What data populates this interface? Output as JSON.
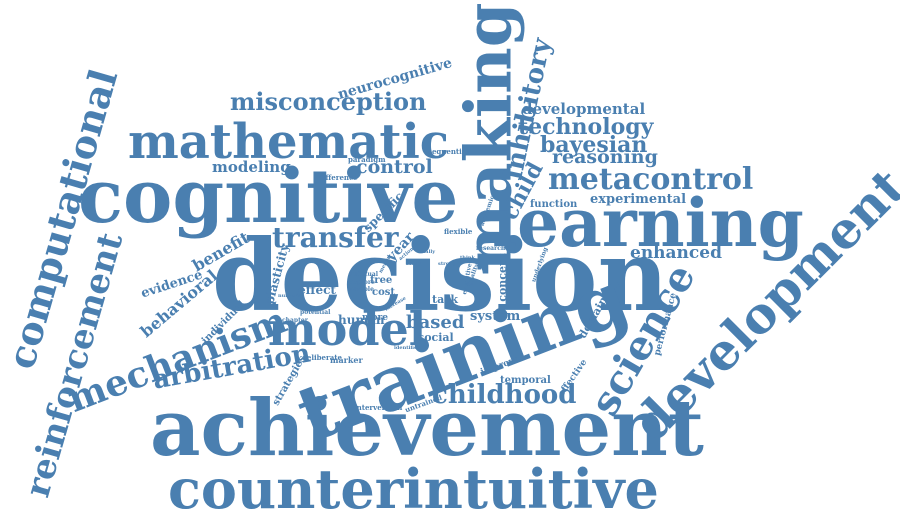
{
  "theme": {
    "word_color": "#4a7fb0",
    "background": "#ffffff"
  },
  "words": {
    "decision": "decision",
    "achievement": "achievement",
    "counterintuitive": "counterintuitive",
    "cognitive": "cognitive",
    "training": "training",
    "learning": "learning",
    "making": "making",
    "development": "development",
    "mathematic": "mathematic",
    "computational": "computational",
    "reinforcement": "reinforcement",
    "model": "model",
    "mechanism": "mechanism",
    "science": "science",
    "metacontrol": "metacontrol",
    "childhood": "childhood",
    "misconception": "misconception",
    "arbitration": "arbitration",
    "transfer": "transfer",
    "inhibitory": "inhibitory",
    "technology": "technology",
    "bayesian": "bayesian",
    "reasoning": "reasoning",
    "developmental": "developmental",
    "control": "control",
    "enhanced": "enhanced",
    "modeling": "modeling",
    "experimental": "experimental",
    "neurocognitive": "neurocognitive",
    "child": "child",
    "benefit": "benefit",
    "behavioral": "behavioral",
    "based": "based",
    "system": "system",
    "evidence": "evidence",
    "plasticity": "plasticity",
    "effect": "effect",
    "human": "human",
    "social": "social",
    "domain": "domain",
    "function": "function",
    "year": "year",
    "task": "task",
    "concept": "concept",
    "specific": "specific",
    "individual": "individual",
    "strategies": "strategies",
    "temporal": "temporal",
    "performance": "performance",
    "improve": "improve",
    "effective": "effective",
    "free": "free",
    "cost": "cost",
    "more": "more",
    "marker": "marker",
    "deliberate": "deliberate",
    "intervention": "intervention",
    "untrained": "untrained",
    "sequential": "sequential",
    "paradigm": "paradigm",
    "difference": "difference",
    "flexible": "flexible",
    "academic": "academic",
    "research": "research",
    "underlying": "underlying",
    "executive": "executive",
    "quality": "quality",
    "potential": "potential",
    "chapter": "chapter",
    "habitual": "habitual",
    "explore": "explore",
    "sample": "sample",
    "mental": "mental",
    "strong": "strong",
    "finally": "finally",
    "study": "study",
    "action": "action",
    "think": "think",
    "increase": "increase",
    "identified": "identified",
    "numeric": "numeric"
  }
}
